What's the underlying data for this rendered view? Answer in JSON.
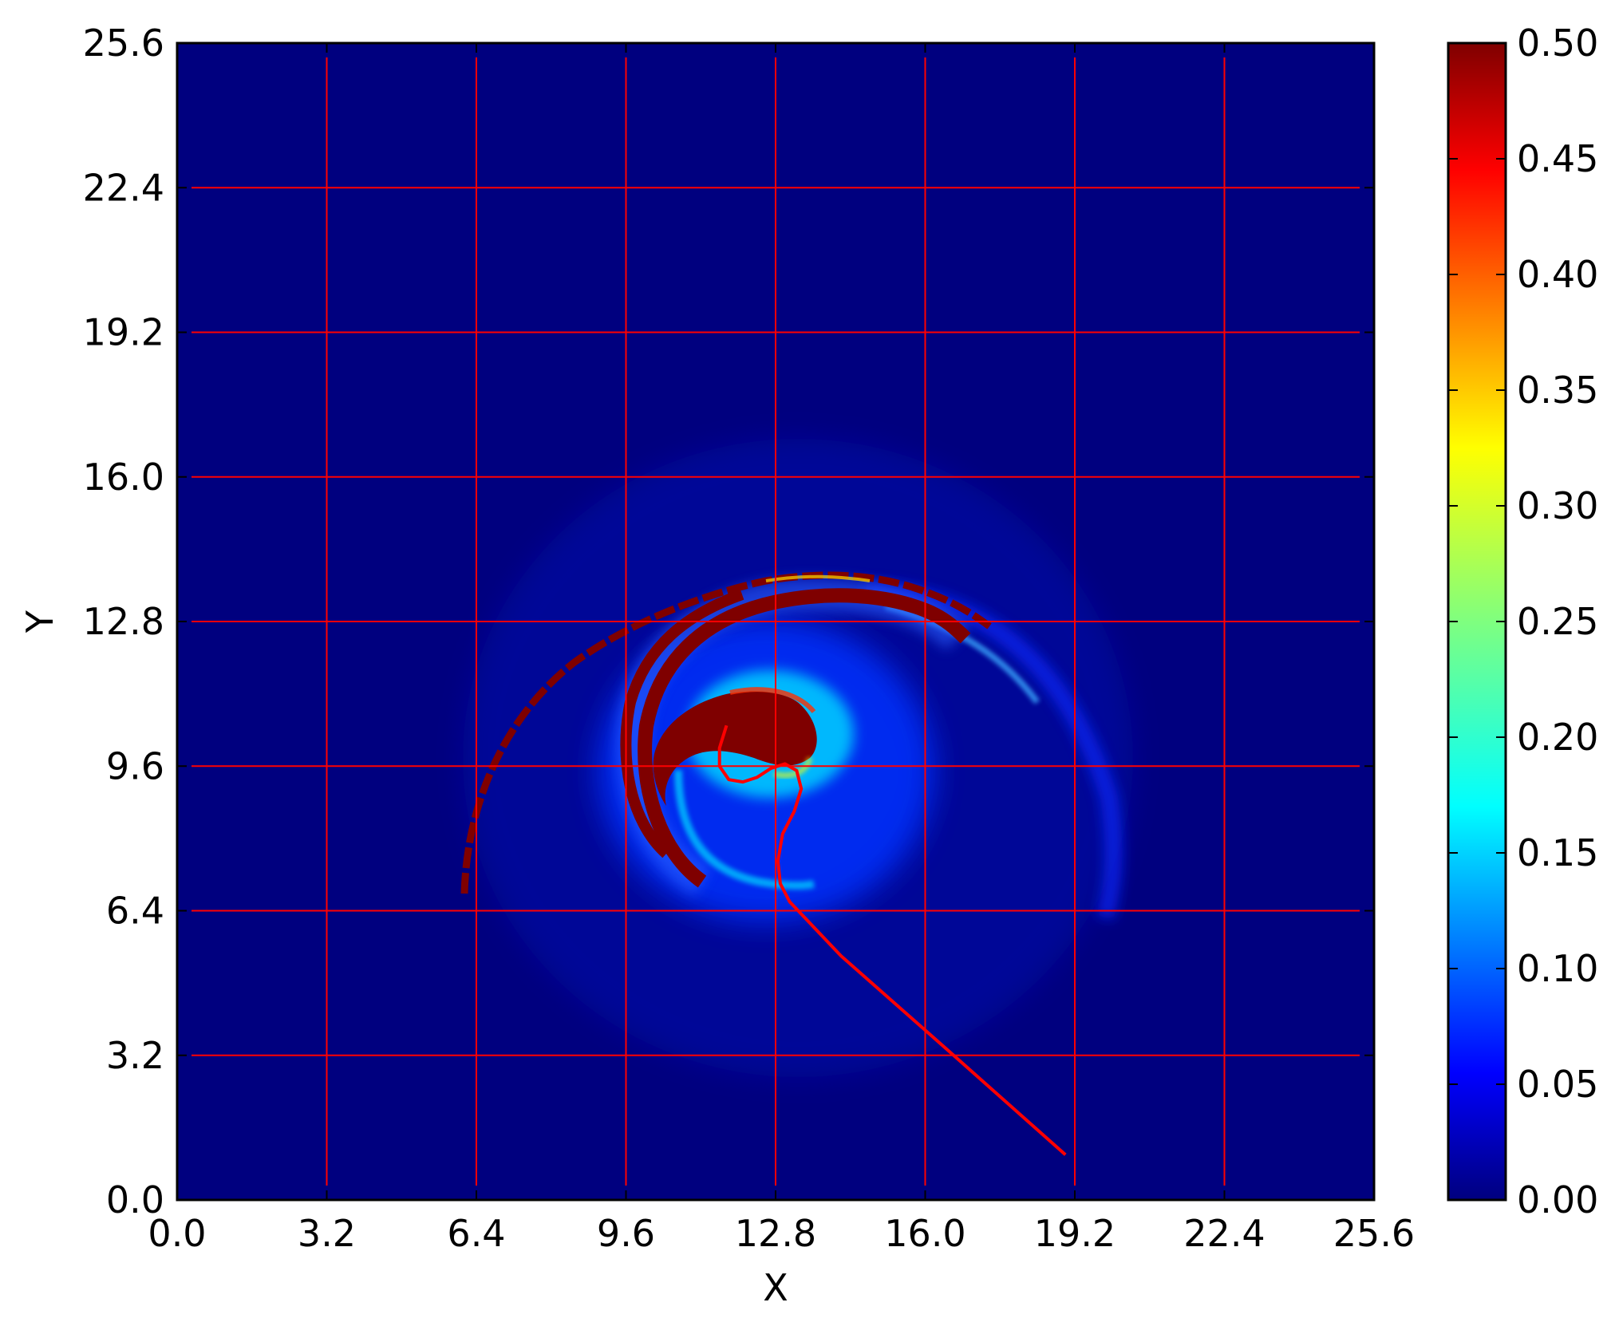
{
  "chart_data": {
    "type": "heatmap",
    "title": "",
    "xlabel": "X",
    "ylabel": "Y",
    "xlim": [
      0.0,
      25.6
    ],
    "ylim": [
      0.0,
      25.6
    ],
    "x_ticks": [
      "0.0",
      "3.2",
      "6.4",
      "9.6",
      "12.8",
      "16.0",
      "19.2",
      "22.4",
      "25.6"
    ],
    "y_ticks": [
      "0.0",
      "3.2",
      "6.4",
      "9.6",
      "12.8",
      "16.0",
      "19.2",
      "22.4",
      "25.6"
    ],
    "grid": true,
    "grid_color": "#ff0000",
    "colormap": "jet",
    "colorbar": {
      "vmin": 0.0,
      "vmax": 0.5,
      "ticks": [
        "0.00",
        "0.05",
        "0.10",
        "0.15",
        "0.20",
        "0.25",
        "0.30",
        "0.35",
        "0.40",
        "0.45",
        "0.50"
      ]
    },
    "field_background_value": 0.0,
    "features": [
      {
        "name": "core-blob",
        "center": [
          12.9,
          9.9
        ],
        "approx_value": 0.5
      },
      {
        "name": "inner-spiral-arm",
        "approx_value": 0.5
      },
      {
        "name": "outer-spiral-arm",
        "approx_value": 0.5
      },
      {
        "name": "faint-outer-arc",
        "approx_value": 0.15
      }
    ],
    "trajectory": {
      "color": "#ff0000",
      "points": [
        [
          19.0,
          1.0
        ],
        [
          16.5,
          3.3
        ],
        [
          14.2,
          5.4
        ],
        [
          13.1,
          6.6
        ],
        [
          12.9,
          7.0
        ],
        [
          12.85,
          7.5
        ],
        [
          12.95,
          8.1
        ],
        [
          13.2,
          8.6
        ],
        [
          13.35,
          9.1
        ],
        [
          13.25,
          9.5
        ],
        [
          13.0,
          9.65
        ],
        [
          12.7,
          9.55
        ],
        [
          12.4,
          9.35
        ],
        [
          12.1,
          9.25
        ],
        [
          11.8,
          9.3
        ],
        [
          11.6,
          9.6
        ],
        [
          11.6,
          10.0
        ],
        [
          11.75,
          10.5
        ]
      ]
    }
  }
}
